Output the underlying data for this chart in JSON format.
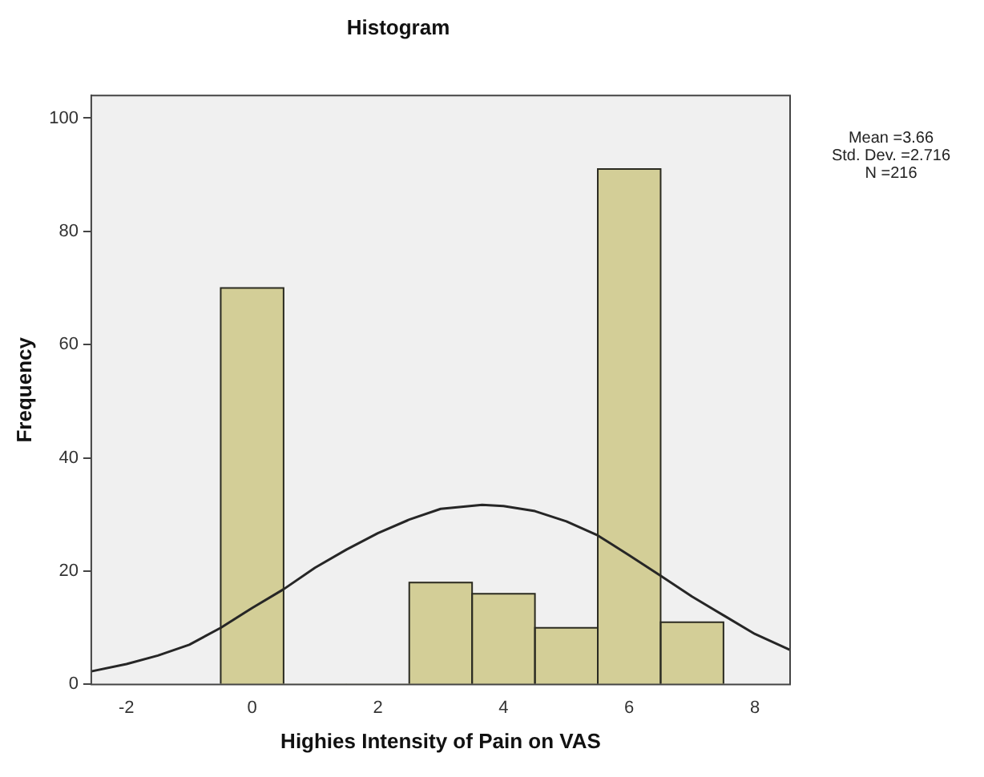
{
  "chart_data": {
    "type": "histogram",
    "title": "Histogram",
    "xlabel": "Highies Intensity of Pain on VAS",
    "ylabel": "Frequency",
    "bins": [
      -0.5,
      0.5,
      1.5,
      2.5,
      3.5,
      4.5,
      5.5,
      6.5,
      7.5
    ],
    "values": [
      70,
      0,
      0,
      18,
      16,
      10,
      91,
      11
    ],
    "color": "#d3ce97",
    "series": [
      {
        "type": "line",
        "color": "#262626",
        "x": [
          -2.56,
          -2,
          -1.5,
          -1,
          -0.5,
          0,
          0.5,
          1,
          1.5,
          2,
          2.5,
          3,
          3.66,
          4,
          4.5,
          5,
          5.5,
          6,
          6.5,
          7,
          7.5,
          8,
          8.56
        ],
        "values": [
          2.3,
          3.6,
          5.1,
          7,
          10,
          13.5,
          16.8,
          20.6,
          23.8,
          26.7,
          29.1,
          31,
          31.7,
          31.5,
          30.6,
          28.8,
          26.3,
          22.8,
          19.2,
          15.5,
          12.2,
          8.9,
          6.1
        ]
      }
    ],
    "xlim": [
      -2.56,
      8.56
    ],
    "xticks": [
      -2,
      0,
      2,
      4,
      6,
      8
    ],
    "ylim": [
      0,
      104
    ],
    "yticks": [
      0,
      20,
      40,
      60,
      80,
      100
    ],
    "annotations": [
      "Mean =3.66",
      "Std. Dev. =2.716",
      "N =216"
    ]
  }
}
